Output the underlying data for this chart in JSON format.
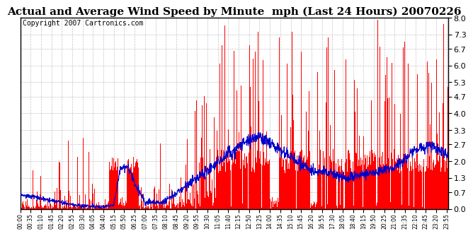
{
  "title": "Actual and Average Wind Speed by Minute  mph (Last 24 Hours) 20070226",
  "copyright": "Copyright 2007 Cartronics.com",
  "yticks": [
    0.0,
    0.7,
    1.3,
    2.0,
    2.7,
    3.3,
    4.0,
    4.7,
    5.3,
    6.0,
    6.7,
    7.3,
    8.0
  ],
  "ymax": 8.0,
  "ymin": 0.0,
  "bar_color": "#FF0000",
  "line_color": "#0000CC",
  "bg_color": "#FFFFFF",
  "grid_color": "#AAAAAA",
  "title_fontsize": 11,
  "copyright_fontsize": 7,
  "n_minutes": 1440,
  "xtick_labels": [
    "00:00",
    "00:35",
    "01:10",
    "01:45",
    "02:20",
    "02:55",
    "03:30",
    "04:05",
    "04:40",
    "05:15",
    "05:50",
    "06:25",
    "07:00",
    "07:35",
    "08:10",
    "08:45",
    "09:20",
    "09:55",
    "10:30",
    "11:05",
    "11:40",
    "12:15",
    "12:50",
    "13:25",
    "14:00",
    "14:35",
    "15:10",
    "15:45",
    "16:20",
    "16:55",
    "17:30",
    "18:05",
    "18:40",
    "19:15",
    "19:50",
    "20:25",
    "21:00",
    "21:35",
    "22:10",
    "22:45",
    "23:20",
    "23:55"
  ]
}
